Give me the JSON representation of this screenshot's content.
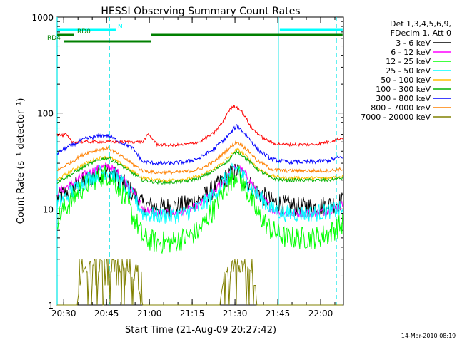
{
  "chart_data": {
    "type": "line",
    "title": "HESSI Observing Summary Count Rates",
    "xlabel": "Start Time (21-Aug-09 20:27:42)",
    "ylabel": "Count Rate (s⁻¹ detector⁻¹)",
    "yscale": "log",
    "ylim": [
      1,
      1000
    ],
    "xlim": [
      "20:27:42",
      "22:08:00"
    ],
    "y_ticks": [
      "1",
      "10",
      "100",
      "1000"
    ],
    "x_ticks": [
      "20:30",
      "20:45",
      "21:00",
      "21:15",
      "21:30",
      "21:45",
      "22:00"
    ],
    "x_ticks_minutes": [
      2.3,
      17.3,
      32.3,
      47.3,
      62.3,
      77.3,
      92.3
    ],
    "legend_header": [
      "Det 1,3,4,5,6,9,",
      "FDecim 1, Att 0"
    ],
    "legend_position": "right",
    "footer_date": "14-Mar-2010 08:19",
    "flags": [
      {
        "label": "N",
        "color": "#00ffff",
        "segments": [
          [
            0,
            20.5
          ],
          [
            78,
            100
          ]
        ]
      },
      {
        "label": "RD0",
        "color": "#008000",
        "segments": [
          [
            0,
            6
          ],
          [
            33,
            100
          ]
        ]
      },
      {
        "label": "RD4",
        "color": "#008000",
        "segments": [
          [
            2.5,
            33
          ]
        ]
      }
    ],
    "markers": {
      "solid_minutes": [
        0.0,
        77.5
      ],
      "dashed_minutes": [
        18.3,
        97.8
      ]
    },
    "series": [
      {
        "name": "3 - 6 keV",
        "color": "#000000",
        "x": [
          0,
          5,
          10,
          15,
          18,
          22,
          26,
          30,
          35,
          40,
          45,
          50,
          55,
          60,
          63,
          66,
          70,
          75,
          80,
          85,
          90,
          95,
          100
        ],
        "y": [
          13,
          16,
          20,
          24,
          25,
          20,
          15,
          11,
          10.5,
          10.5,
          11,
          12.5,
          16,
          22,
          25,
          20,
          15,
          12,
          11,
          10.5,
          10.5,
          11,
          12
        ]
      },
      {
        "name": "6 - 12 keV",
        "color": "#ff00ff",
        "x": [
          0,
          5,
          10,
          15,
          18,
          22,
          26,
          30,
          35,
          40,
          45,
          50,
          55,
          60,
          63,
          66,
          70,
          75,
          80,
          85,
          90,
          95,
          100
        ],
        "y": [
          15,
          18,
          23,
          27,
          28,
          23,
          16,
          10,
          9,
          9,
          9.5,
          11,
          15,
          22,
          28,
          23,
          15,
          10,
          9,
          9,
          9,
          9.5,
          11
        ]
      },
      {
        "name": "12 - 25 keV",
        "color": "#00ff00",
        "x": [
          0,
          5,
          10,
          15,
          18,
          22,
          26,
          30,
          35,
          40,
          45,
          50,
          55,
          60,
          63,
          66,
          70,
          75,
          80,
          85,
          90,
          95,
          100
        ],
        "y": [
          8,
          12,
          18,
          22,
          23,
          16,
          9,
          5,
          4.5,
          4.5,
          5,
          6,
          10,
          18,
          24,
          16,
          9,
          6,
          5,
          5,
          5,
          5.5,
          7
        ]
      },
      {
        "name": "25 - 50 keV",
        "color": "#00ffff",
        "x": [
          0,
          5,
          10,
          15,
          18,
          22,
          26,
          30,
          35,
          40,
          45,
          50,
          55,
          60,
          63,
          66,
          70,
          75,
          80,
          85,
          90,
          95,
          100
        ],
        "y": [
          11,
          15,
          20,
          24,
          25,
          20,
          14,
          9,
          8.5,
          8.5,
          9,
          10.5,
          14,
          22,
          27,
          20,
          14,
          10,
          9,
          9,
          9,
          9.5,
          10
        ]
      },
      {
        "name": "50 - 100 keV",
        "color": "#ffbf00",
        "x": [
          0,
          5,
          10,
          15,
          18,
          22,
          26,
          30,
          35,
          40,
          45,
          50,
          55,
          60,
          63,
          66,
          70,
          75,
          80,
          85,
          90,
          95,
          100
        ],
        "y": [
          20,
          25,
          30,
          34,
          35,
          30,
          25,
          21,
          20,
          20,
          20.5,
          22,
          26,
          34,
          42,
          36,
          27,
          22,
          21,
          21,
          21,
          21,
          22
        ]
      },
      {
        "name": "100 - 300 keV",
        "color": "#00b000",
        "x": [
          0,
          5,
          10,
          15,
          18,
          22,
          26,
          30,
          35,
          40,
          45,
          50,
          55,
          60,
          63,
          66,
          70,
          75,
          80,
          85,
          90,
          95,
          100
        ],
        "y": [
          19,
          23,
          28,
          33,
          34,
          29,
          24,
          20,
          19,
          19,
          19.5,
          21,
          25,
          32,
          40,
          34,
          26,
          21,
          20,
          20,
          20,
          20,
          21
        ]
      },
      {
        "name": "300 - 800 keV",
        "color": "#0000ff",
        "x": [
          0,
          5,
          10,
          15,
          18,
          22,
          26,
          30,
          35,
          40,
          45,
          50,
          55,
          60,
          63,
          66,
          70,
          75,
          80,
          85,
          90,
          95,
          100
        ],
        "y": [
          38,
          46,
          54,
          58,
          58,
          50,
          44,
          31,
          30,
          30,
          31,
          34,
          42,
          58,
          74,
          60,
          42,
          33,
          31,
          31,
          31,
          32,
          35
        ]
      },
      {
        "name": "800 - 7000 keV",
        "color": "#ff8000",
        "x": [
          0,
          5,
          10,
          15,
          18,
          22,
          26,
          30,
          35,
          40,
          45,
          50,
          55,
          60,
          63,
          66,
          70,
          75,
          80,
          85,
          90,
          95,
          100
        ],
        "y": [
          25,
          31,
          38,
          42,
          43,
          36,
          30,
          25,
          24,
          24,
          24.5,
          26,
          31,
          42,
          50,
          43,
          32,
          26,
          25,
          25,
          25,
          25,
          26
        ]
      },
      {
        "name": "7000 - 20000 keV",
        "color": "#808000",
        "x": [
          0,
          7,
          9,
          11,
          14,
          17,
          19,
          22,
          25,
          28,
          30,
          57,
          58,
          60,
          62,
          64,
          66,
          68,
          70,
          100
        ],
        "y": [
          1,
          1,
          2.2,
          2.8,
          3.0,
          2.8,
          3.0,
          2.8,
          2.2,
          1.6,
          1,
          1,
          1.6,
          2.6,
          3.0,
          3.0,
          2.6,
          2.2,
          1,
          1
        ]
      },
      {
        "name": "saa_red",
        "color": "#ff0000",
        "x": [
          0,
          2,
          3,
          5,
          10,
          15,
          18,
          22,
          26,
          30,
          32,
          35,
          40,
          45,
          50,
          55,
          58,
          60,
          62,
          64,
          66,
          68,
          72,
          76,
          80,
          85,
          90,
          95,
          100
        ],
        "y": [
          60,
          58,
          60,
          50,
          50,
          50,
          50,
          50,
          50,
          50,
          60,
          47,
          46,
          47,
          50,
          62,
          80,
          105,
          118,
          110,
          90,
          70,
          55,
          48,
          47,
          47,
          47,
          50,
          55
        ]
      }
    ]
  }
}
